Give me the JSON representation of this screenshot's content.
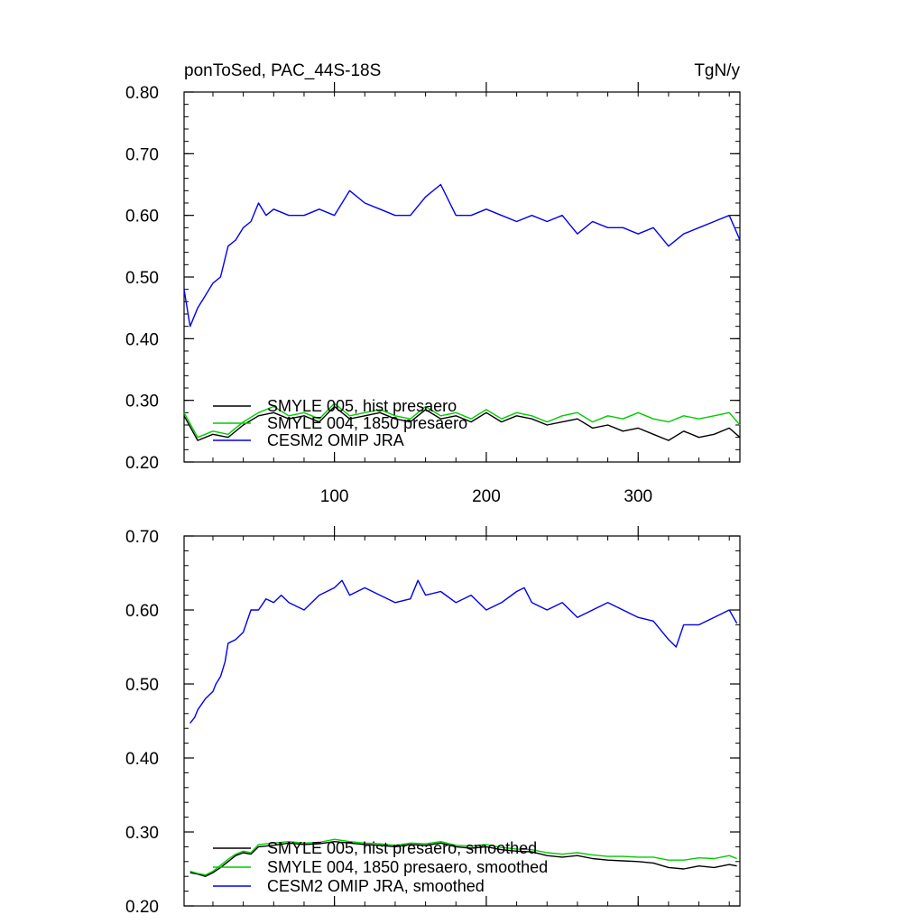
{
  "chart_data": [
    {
      "type": "line",
      "title_left": "ponToSed, PAC_44S-18S",
      "title_right": "TgN/y",
      "xlim": [
        1,
        367
      ],
      "ylim": [
        0.2,
        0.8
      ],
      "x_ticks": [
        100,
        200,
        300
      ],
      "x_tick_labels": [
        "100",
        "200",
        "300"
      ],
      "y_ticks": [
        0.2,
        0.3,
        0.4,
        0.5,
        0.6,
        0.7,
        0.8
      ],
      "y_tick_labels": [
        "0.20",
        "0.30",
        "0.40",
        "0.50",
        "0.60",
        "0.70",
        "0.80"
      ],
      "legend_position": "bottom-left",
      "series": [
        {
          "name": "SMYLE 005, hist presaero",
          "color": "#000000",
          "x": [
            1,
            10,
            20,
            30,
            40,
            50,
            60,
            70,
            80,
            90,
            100,
            110,
            120,
            130,
            140,
            150,
            160,
            170,
            180,
            190,
            200,
            210,
            220,
            230,
            240,
            250,
            260,
            270,
            280,
            290,
            300,
            310,
            320,
            330,
            340,
            350,
            360,
            367
          ],
          "values": [
            0.275,
            0.235,
            0.245,
            0.24,
            0.26,
            0.275,
            0.28,
            0.27,
            0.275,
            0.265,
            0.29,
            0.27,
            0.275,
            0.28,
            0.27,
            0.265,
            0.285,
            0.27,
            0.275,
            0.265,
            0.28,
            0.265,
            0.275,
            0.27,
            0.26,
            0.265,
            0.27,
            0.255,
            0.26,
            0.25,
            0.255,
            0.245,
            0.235,
            0.25,
            0.24,
            0.245,
            0.255,
            0.24
          ]
        },
        {
          "name": "SMYLE 004, 1850 presaero",
          "color": "#00cc00",
          "x": [
            1,
            10,
            20,
            30,
            40,
            50,
            60,
            70,
            80,
            90,
            100,
            110,
            120,
            130,
            140,
            150,
            160,
            170,
            180,
            190,
            200,
            210,
            220,
            230,
            240,
            250,
            260,
            270,
            280,
            290,
            300,
            310,
            320,
            330,
            340,
            350,
            360,
            367
          ],
          "values": [
            0.28,
            0.24,
            0.25,
            0.245,
            0.265,
            0.28,
            0.29,
            0.275,
            0.28,
            0.27,
            0.295,
            0.275,
            0.28,
            0.285,
            0.275,
            0.27,
            0.29,
            0.275,
            0.28,
            0.27,
            0.285,
            0.27,
            0.28,
            0.275,
            0.265,
            0.275,
            0.28,
            0.265,
            0.275,
            0.27,
            0.28,
            0.27,
            0.265,
            0.275,
            0.27,
            0.275,
            0.28,
            0.26
          ]
        },
        {
          "name": "CESM2 OMIP JRA",
          "color": "#0000ee",
          "x": [
            1,
            5,
            10,
            15,
            20,
            25,
            30,
            35,
            40,
            45,
            50,
            55,
            60,
            70,
            80,
            90,
            100,
            110,
            120,
            130,
            140,
            150,
            160,
            170,
            180,
            190,
            200,
            210,
            220,
            230,
            240,
            250,
            260,
            270,
            280,
            290,
            300,
            310,
            320,
            330,
            340,
            350,
            360,
            367
          ],
          "values": [
            0.48,
            0.42,
            0.45,
            0.47,
            0.49,
            0.5,
            0.55,
            0.56,
            0.58,
            0.59,
            0.62,
            0.6,
            0.61,
            0.6,
            0.6,
            0.61,
            0.6,
            0.64,
            0.62,
            0.61,
            0.6,
            0.6,
            0.63,
            0.65,
            0.6,
            0.6,
            0.61,
            0.6,
            0.59,
            0.6,
            0.59,
            0.6,
            0.57,
            0.59,
            0.58,
            0.58,
            0.57,
            0.58,
            0.55,
            0.57,
            0.58,
            0.59,
            0.6,
            0.56
          ]
        }
      ]
    },
    {
      "type": "line",
      "xlim": [
        1,
        367
      ],
      "ylim": [
        0.2,
        0.7
      ],
      "x_ticks": [
        100,
        200,
        300
      ],
      "y_ticks": [
        0.2,
        0.3,
        0.4,
        0.5,
        0.6,
        0.7
      ],
      "y_tick_labels": [
        "0.20",
        "0.30",
        "0.40",
        "0.50",
        "0.60",
        "0.70"
      ],
      "legend_position": "bottom-left",
      "series": [
        {
          "name": "SMYLE 005, hist presaero, smoothed",
          "color": "#000000",
          "x": [
            5,
            10,
            15,
            20,
            25,
            30,
            35,
            40,
            45,
            50,
            60,
            70,
            80,
            90,
            100,
            110,
            120,
            130,
            140,
            150,
            160,
            170,
            180,
            190,
            200,
            210,
            220,
            230,
            240,
            250,
            260,
            270,
            280,
            290,
            300,
            310,
            320,
            330,
            340,
            350,
            360,
            365
          ],
          "values": [
            0.245,
            0.243,
            0.24,
            0.245,
            0.252,
            0.26,
            0.268,
            0.272,
            0.27,
            0.28,
            0.282,
            0.285,
            0.283,
            0.284,
            0.287,
            0.285,
            0.283,
            0.282,
            0.28,
            0.283,
            0.282,
            0.285,
            0.28,
            0.278,
            0.28,
            0.276,
            0.274,
            0.273,
            0.268,
            0.266,
            0.268,
            0.264,
            0.262,
            0.261,
            0.26,
            0.258,
            0.252,
            0.25,
            0.254,
            0.252,
            0.256,
            0.254
          ]
        },
        {
          "name": "SMYLE 004, 1850 presaero, smoothed",
          "color": "#00cc00",
          "x": [
            5,
            10,
            15,
            20,
            25,
            30,
            35,
            40,
            45,
            50,
            60,
            70,
            80,
            90,
            100,
            110,
            120,
            130,
            140,
            150,
            160,
            170,
            180,
            190,
            200,
            210,
            220,
            230,
            240,
            250,
            260,
            270,
            280,
            290,
            300,
            310,
            320,
            330,
            340,
            350,
            360,
            365
          ],
          "values": [
            0.247,
            0.244,
            0.242,
            0.247,
            0.255,
            0.263,
            0.27,
            0.274,
            0.272,
            0.283,
            0.285,
            0.287,
            0.285,
            0.286,
            0.29,
            0.287,
            0.285,
            0.284,
            0.282,
            0.285,
            0.284,
            0.287,
            0.282,
            0.281,
            0.283,
            0.279,
            0.277,
            0.276,
            0.272,
            0.27,
            0.272,
            0.269,
            0.267,
            0.267,
            0.266,
            0.266,
            0.262,
            0.262,
            0.265,
            0.264,
            0.268,
            0.264
          ]
        },
        {
          "name": "CESM2 OMIP JRA, smoothed",
          "color": "#0000ee",
          "x": [
            5,
            8,
            10,
            15,
            20,
            22,
            25,
            28,
            30,
            35,
            40,
            45,
            50,
            55,
            60,
            65,
            70,
            80,
            90,
            100,
            105,
            110,
            120,
            130,
            140,
            150,
            155,
            160,
            170,
            180,
            190,
            200,
            210,
            220,
            225,
            230,
            240,
            250,
            260,
            270,
            280,
            290,
            300,
            310,
            320,
            325,
            330,
            340,
            350,
            360,
            365
          ],
          "values": [
            0.447,
            0.455,
            0.465,
            0.48,
            0.49,
            0.5,
            0.51,
            0.53,
            0.555,
            0.56,
            0.57,
            0.6,
            0.6,
            0.615,
            0.61,
            0.62,
            0.61,
            0.6,
            0.62,
            0.63,
            0.64,
            0.62,
            0.63,
            0.62,
            0.61,
            0.615,
            0.64,
            0.62,
            0.625,
            0.61,
            0.62,
            0.6,
            0.61,
            0.625,
            0.63,
            0.61,
            0.6,
            0.61,
            0.59,
            0.6,
            0.61,
            0.6,
            0.59,
            0.585,
            0.56,
            0.55,
            0.58,
            0.58,
            0.59,
            0.6,
            0.582
          ]
        }
      ]
    }
  ]
}
